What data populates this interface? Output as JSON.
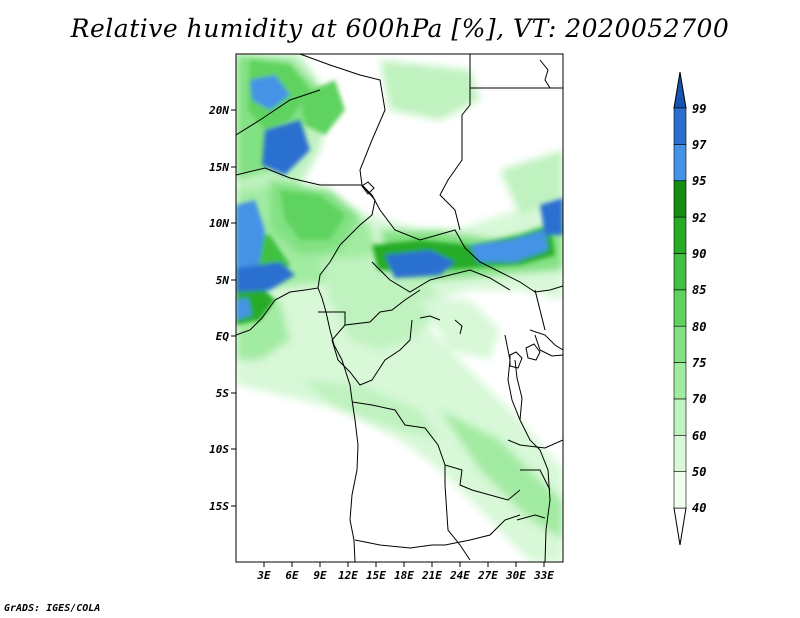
{
  "title": "Relative humidity at 600hPa [%], VT: 2020052700",
  "credit": "GrADS: IGES/COLA",
  "map": {
    "lon_range": [
      0,
      35
    ],
    "lat_range": [
      -20,
      25
    ],
    "lat_ticks": [
      "20N",
      "15N",
      "10N",
      "5N",
      "EQ",
      "5S",
      "10S",
      "15S"
    ],
    "lon_ticks": [
      "3E",
      "6E",
      "9E",
      "12E",
      "15E",
      "18E",
      "21E",
      "24E",
      "27E",
      "30E",
      "33E"
    ]
  },
  "colorbar": {
    "levels": [
      "40",
      "50",
      "60",
      "70",
      "75",
      "80",
      "85",
      "90",
      "92",
      "95",
      "97",
      "99"
    ],
    "colors": [
      "#f0fff0",
      "#d8f8d8",
      "#bff2bf",
      "#a2eba2",
      "#82e182",
      "#5fd35f",
      "#41c141",
      "#27ac27",
      "#138e13",
      "#4593e6",
      "#2a6fd0",
      "#1553b4"
    ]
  }
}
